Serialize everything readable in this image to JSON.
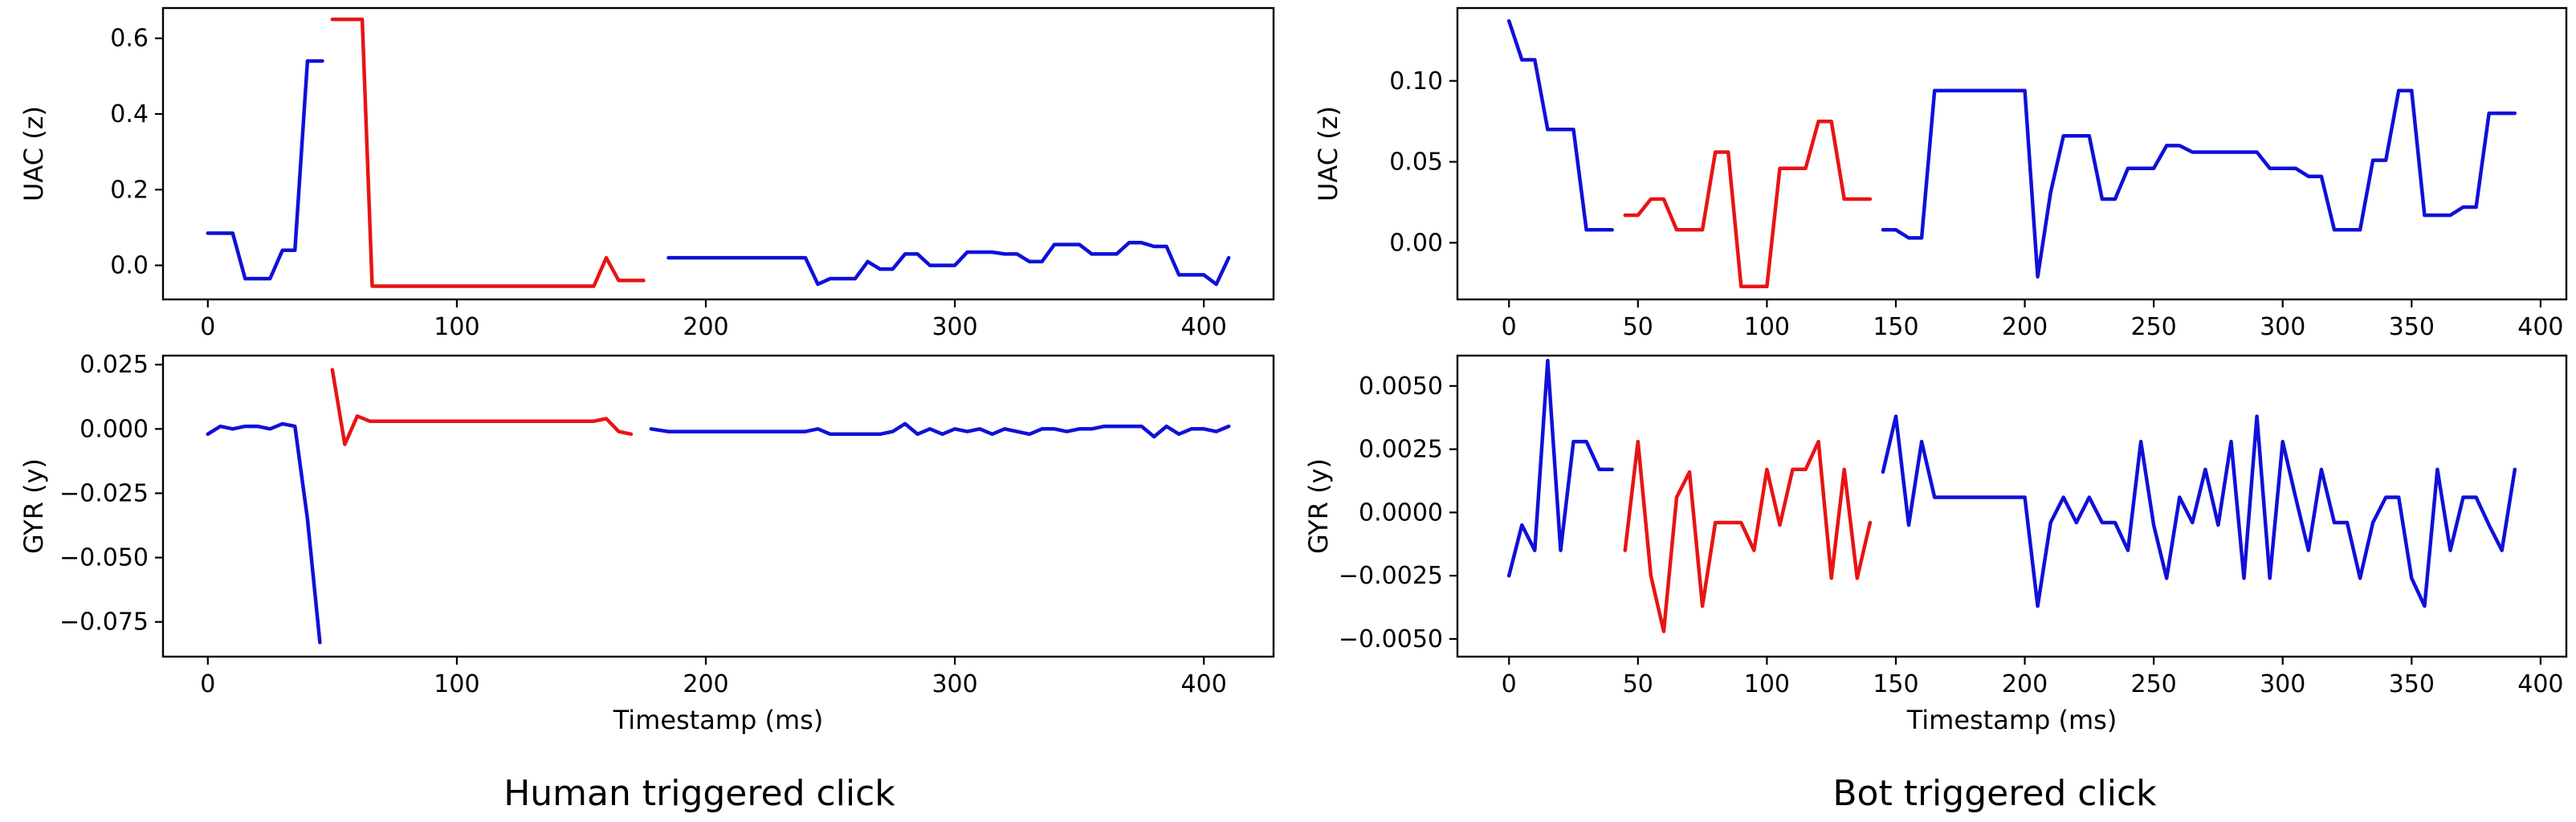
{
  "captions": {
    "human": "Human triggered click",
    "bot": "Bot triggered click"
  },
  "colors": {
    "normal": "#1010d8",
    "click": "#e81414"
  },
  "chart_data": [
    {
      "type": "line",
      "panel": "human-uac",
      "ylabel": "UAC (z)",
      "xlabel": "",
      "xlim": [
        -18,
        428
      ],
      "ylim": [
        -0.09,
        0.68
      ],
      "xticks": [
        0,
        100,
        200,
        300,
        400
      ],
      "yticks": [
        0.0,
        0.2,
        0.4,
        0.6
      ],
      "ytick_labels": [
        "0.0",
        "0.2",
        "0.4",
        "0.6"
      ],
      "series": [
        {
          "color": "normal",
          "x": [
            0,
            10,
            15,
            25,
            30,
            35,
            40,
            46
          ],
          "y": [
            0.085,
            0.085,
            -0.035,
            -0.035,
            0.04,
            0.04,
            0.54,
            0.54
          ]
        },
        {
          "color": "click",
          "x": [
            50,
            62,
            66,
            155,
            160,
            165,
            175
          ],
          "y": [
            0.65,
            0.65,
            -0.055,
            -0.055,
            0.02,
            -0.04,
            -0.04
          ]
        },
        {
          "color": "normal",
          "x": [
            185,
            240,
            245,
            250,
            255,
            260,
            265,
            270,
            275,
            280,
            285,
            290,
            295,
            300,
            305,
            310,
            315,
            320,
            325,
            330,
            335,
            340,
            345,
            350,
            355,
            360,
            365,
            370,
            375,
            380,
            385,
            390,
            395,
            400,
            405,
            410
          ],
          "y": [
            0.02,
            0.02,
            -0.05,
            -0.035,
            -0.035,
            -0.035,
            0.01,
            -0.01,
            -0.01,
            0.03,
            0.03,
            0.0,
            0.0,
            0.0,
            0.035,
            0.035,
            0.035,
            0.03,
            0.03,
            0.01,
            0.01,
            0.055,
            0.055,
            0.055,
            0.03,
            0.03,
            0.03,
            0.06,
            0.06,
            0.05,
            0.05,
            -0.025,
            -0.025,
            -0.025,
            -0.05,
            0.02
          ]
        }
      ]
    },
    {
      "type": "line",
      "panel": "human-gyr",
      "ylabel": "GYR (y)",
      "xlabel": "Timestamp (ms)",
      "xlim": [
        -18,
        428
      ],
      "ylim": [
        -0.0885,
        0.0285
      ],
      "xticks": [
        0,
        100,
        200,
        300,
        400
      ],
      "yticks": [
        0.025,
        0.0,
        -0.025,
        -0.05,
        -0.075
      ],
      "ytick_labels": [
        "0.025",
        "0.000",
        "−0.025",
        "−0.050",
        "−0.075"
      ],
      "series": [
        {
          "color": "normal",
          "x": [
            0,
            5,
            10,
            15,
            20,
            25,
            30,
            35,
            40,
            45
          ],
          "y": [
            -0.002,
            0.001,
            0.0,
            0.001,
            0.001,
            0.0,
            0.002,
            0.001,
            -0.035,
            -0.083
          ]
        },
        {
          "color": "click",
          "x": [
            50,
            55,
            60,
            65,
            150,
            155,
            160,
            165,
            170
          ],
          "y": [
            0.023,
            -0.006,
            0.005,
            0.003,
            0.003,
            0.003,
            0.004,
            -0.001,
            -0.002
          ]
        },
        {
          "color": "normal",
          "x": [
            178,
            185,
            240,
            245,
            250,
            255,
            260,
            265,
            270,
            275,
            280,
            285,
            290,
            295,
            300,
            305,
            310,
            315,
            320,
            325,
            330,
            335,
            340,
            345,
            350,
            355,
            360,
            365,
            370,
            375,
            380,
            385,
            390,
            395,
            400,
            405,
            410
          ],
          "y": [
            0.0,
            -0.001,
            -0.001,
            0.0,
            -0.002,
            -0.002,
            -0.002,
            -0.002,
            -0.002,
            -0.001,
            0.002,
            -0.002,
            0.0,
            -0.002,
            0.0,
            -0.001,
            0.0,
            -0.002,
            0.0,
            -0.001,
            -0.002,
            0.0,
            0.0,
            -0.001,
            0.0,
            0.0,
            0.001,
            0.001,
            0.001,
            0.001,
            -0.003,
            0.001,
            -0.002,
            0.0,
            0.0,
            -0.001,
            0.001
          ]
        }
      ]
    },
    {
      "type": "line",
      "panel": "bot-uac",
      "ylabel": "UAC (z)",
      "xlabel": "",
      "xlim": [
        -20,
        410
      ],
      "ylim": [
        -0.035,
        0.145
      ],
      "xticks": [
        0,
        50,
        100,
        150,
        200,
        250,
        300,
        350,
        400
      ],
      "yticks": [
        0.1,
        0.05,
        0.0
      ],
      "ytick_labels": [
        "0.10",
        "0.05",
        "0.00"
      ],
      "series": [
        {
          "color": "normal",
          "x": [
            0,
            5,
            10,
            15,
            20,
            25,
            30,
            35,
            40
          ],
          "y": [
            0.137,
            0.113,
            0.113,
            0.07,
            0.07,
            0.07,
            0.008,
            0.008,
            0.008
          ]
        },
        {
          "color": "click",
          "x": [
            45,
            50,
            55,
            60,
            65,
            70,
            75,
            80,
            85,
            90,
            95,
            100,
            105,
            110,
            115,
            120,
            125,
            130,
            135,
            140
          ],
          "y": [
            0.017,
            0.017,
            0.027,
            0.027,
            0.008,
            0.008,
            0.008,
            0.056,
            0.056,
            -0.027,
            -0.027,
            -0.027,
            0.046,
            0.046,
            0.046,
            0.075,
            0.075,
            0.027,
            0.027,
            0.027
          ]
        },
        {
          "color": "normal",
          "x": [
            145,
            150,
            155,
            160,
            165,
            170,
            175,
            180,
            185,
            190,
            195,
            200,
            205,
            210,
            215,
            220,
            225,
            230,
            235,
            240,
            245,
            250,
            255,
            260,
            265,
            270,
            275,
            280,
            285,
            290,
            295,
            300,
            305,
            310,
            315,
            320,
            325,
            330,
            335,
            340,
            345,
            350,
            355,
            360,
            365,
            370,
            375,
            380,
            385,
            390
          ],
          "y": [
            0.008,
            0.008,
            0.003,
            0.003,
            0.094,
            0.094,
            0.094,
            0.094,
            0.094,
            0.094,
            0.094,
            0.094,
            -0.021,
            0.031,
            0.066,
            0.066,
            0.066,
            0.027,
            0.027,
            0.046,
            0.046,
            0.046,
            0.06,
            0.06,
            0.056,
            0.056,
            0.056,
            0.056,
            0.056,
            0.056,
            0.046,
            0.046,
            0.046,
            0.041,
            0.041,
            0.008,
            0.008,
            0.008,
            0.051,
            0.051,
            0.094,
            0.094,
            0.017,
            0.017,
            0.017,
            0.022,
            0.022,
            0.08,
            0.08,
            0.08
          ]
        }
      ]
    },
    {
      "type": "line",
      "panel": "bot-gyr",
      "ylabel": "GYR (y)",
      "xlabel": "Timestamp (ms)",
      "xlim": [
        -20,
        410
      ],
      "ylim": [
        -0.0057,
        0.0062
      ],
      "xticks": [
        0,
        50,
        100,
        150,
        200,
        250,
        300,
        350,
        400
      ],
      "yticks": [
        0.005,
        0.0025,
        0.0,
        -0.0025,
        -0.005
      ],
      "ytick_labels": [
        "0.0050",
        "0.0025",
        "0.0000",
        "−0.0025",
        "−0.0050"
      ],
      "series": [
        {
          "color": "normal",
          "x": [
            0,
            5,
            10,
            15,
            20,
            25,
            30,
            35,
            40
          ],
          "y": [
            -0.0025,
            -0.0005,
            -0.0015,
            0.006,
            -0.0015,
            0.0028,
            0.0028,
            0.0017,
            0.0017
          ]
        },
        {
          "color": "click",
          "x": [
            45,
            50,
            55,
            60,
            65,
            70,
            75,
            80,
            85,
            90,
            95,
            100,
            105,
            110,
            115,
            120,
            125,
            130,
            135,
            140
          ],
          "y": [
            -0.0015,
            0.0028,
            -0.0025,
            -0.0047,
            0.0006,
            0.0016,
            -0.0037,
            -0.0004,
            -0.0004,
            -0.0004,
            -0.0015,
            0.0017,
            -0.0005,
            0.0017,
            0.0017,
            0.0028,
            -0.0026,
            0.0017,
            -0.0026,
            -0.0004
          ]
        },
        {
          "color": "normal",
          "x": [
            145,
            150,
            155,
            160,
            165,
            200,
            205,
            210,
            215,
            220,
            225,
            230,
            235,
            240,
            245,
            250,
            255,
            260,
            265,
            270,
            275,
            280,
            285,
            290,
            295,
            300,
            305,
            310,
            315,
            320,
            325,
            330,
            335,
            340,
            345,
            350,
            355,
            360,
            365,
            370,
            375,
            380,
            385,
            390
          ],
          "y": [
            0.0016,
            0.0038,
            -0.0005,
            0.0028,
            0.0006,
            0.0006,
            -0.0037,
            -0.0004,
            0.0006,
            -0.0004,
            0.0006,
            -0.0004,
            -0.0004,
            -0.0015,
            0.0028,
            -0.0005,
            -0.0026,
            0.0006,
            -0.0004,
            0.0017,
            -0.0005,
            0.0028,
            -0.0026,
            0.0038,
            -0.0026,
            0.0028,
            0.0006,
            -0.0015,
            0.0017,
            -0.0004,
            -0.0004,
            -0.0026,
            -0.0004,
            0.0006,
            0.0006,
            -0.0026,
            -0.0037,
            0.0017,
            -0.0015,
            0.0006,
            0.0006,
            -0.0005,
            -0.0015,
            0.0017
          ]
        }
      ]
    }
  ]
}
